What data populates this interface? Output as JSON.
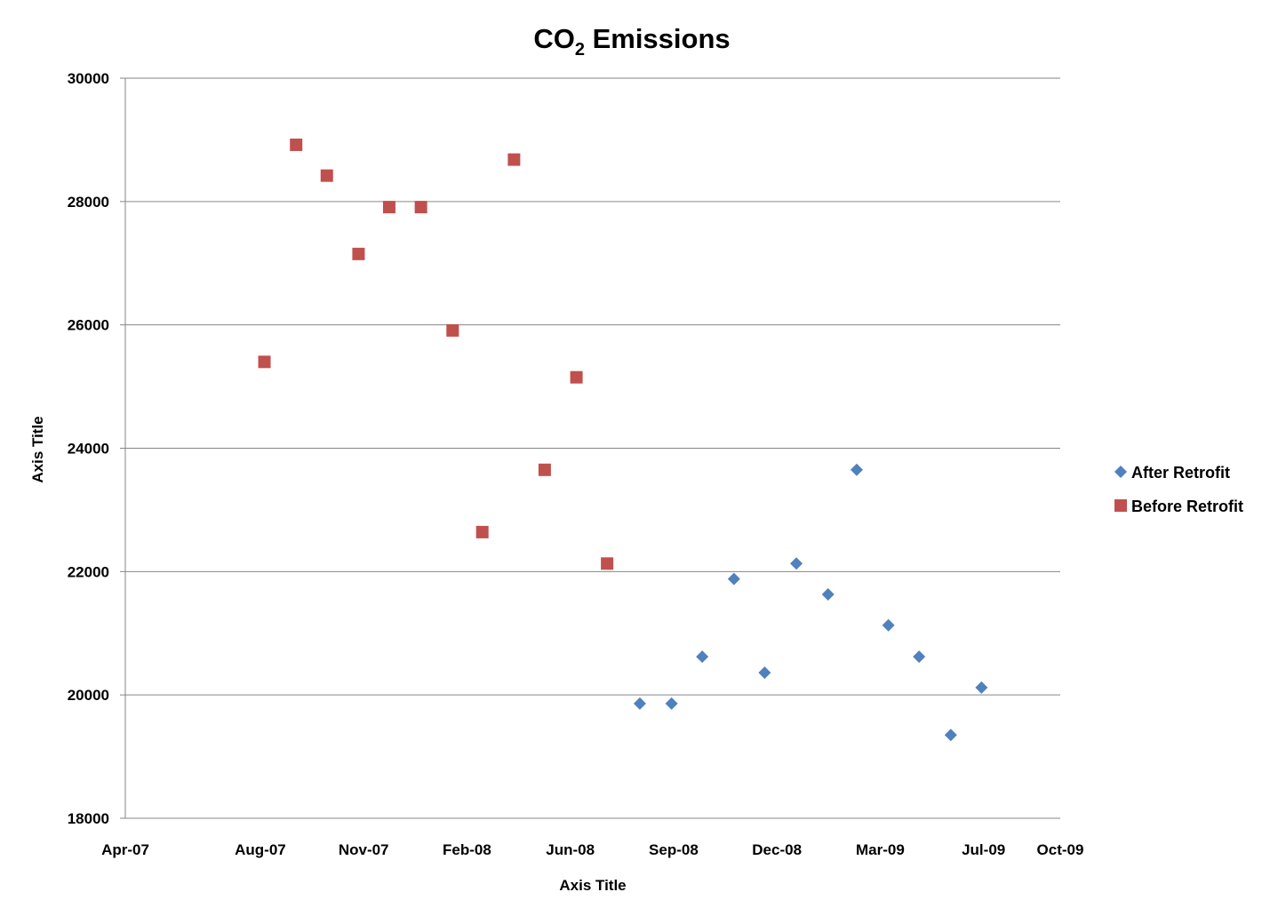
{
  "chart_data": {
    "type": "scatter",
    "title": "CO2 Emissions",
    "title_main": "CO",
    "title_sub": "2",
    "title_rest": " Emissions",
    "xlabel": "Axis Title",
    "ylabel": "Axis Title",
    "ylim": [
      18000,
      30000
    ],
    "xlim": [
      "2007-04-01",
      "2009-10-01"
    ],
    "yticks": [
      18000,
      20000,
      22000,
      24000,
      26000,
      28000,
      30000
    ],
    "xticks": [
      {
        "date": "2007-04-01",
        "label": "Apr-07"
      },
      {
        "date": "2007-08-11",
        "label": "Aug-07"
      },
      {
        "date": "2007-11-20",
        "label": "Nov-07"
      },
      {
        "date": "2008-02-29",
        "label": "Feb-08"
      },
      {
        "date": "2008-06-09",
        "label": "Jun-08"
      },
      {
        "date": "2008-09-18",
        "label": "Sep-08"
      },
      {
        "date": "2008-12-28",
        "label": "Dec-08"
      },
      {
        "date": "2009-04-08",
        "label": "Mar-09"
      },
      {
        "date": "2009-07-18",
        "label": "Jul-09"
      },
      {
        "date": "2009-10-01",
        "label": "Oct-09"
      }
    ],
    "grid": true,
    "legend_position": "right",
    "series": [
      {
        "name": "After Retrofit",
        "marker": "diamond",
        "color": "#4F81BD",
        "x": [
          "2008-08-16",
          "2008-09-16",
          "2008-10-16",
          "2008-11-16",
          "2008-12-16",
          "2009-01-16",
          "2009-02-16",
          "2009-03-16",
          "2009-04-16",
          "2009-05-16",
          "2009-06-16",
          "2009-07-16"
        ],
        "y": [
          19860,
          19860,
          20620,
          21880,
          20360,
          22130,
          21630,
          23650,
          21130,
          20620,
          19350,
          20120
        ]
      },
      {
        "name": "Before Retrofit",
        "marker": "square",
        "color": "#C0504D",
        "x": [
          "2007-08-15",
          "2007-09-15",
          "2007-10-15",
          "2007-11-15",
          "2007-12-15",
          "2008-01-15",
          "2008-02-15",
          "2008-03-15",
          "2008-04-15",
          "2008-05-15",
          "2008-06-15",
          "2008-07-15"
        ],
        "y": [
          25400,
          28920,
          28420,
          27150,
          27910,
          27910,
          25910,
          22640,
          28680,
          23650,
          25150,
          22130
        ]
      }
    ]
  }
}
